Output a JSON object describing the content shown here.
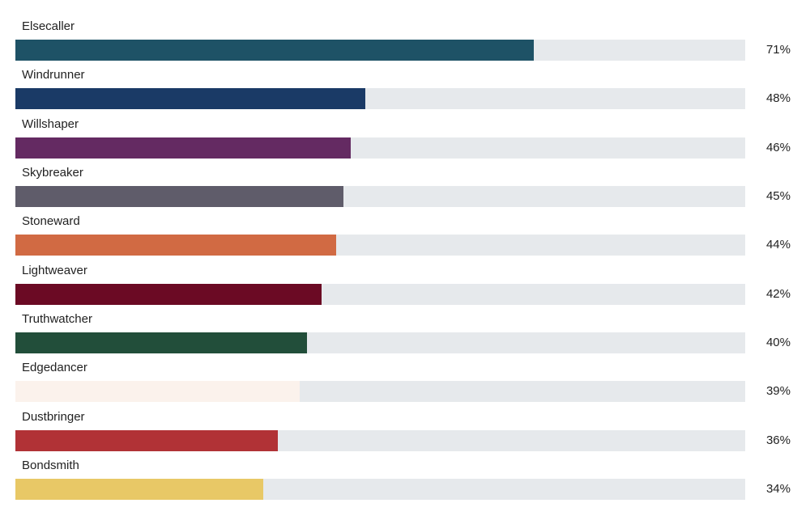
{
  "chart_data": {
    "type": "bar",
    "orientation": "horizontal",
    "title": "",
    "xlabel": "",
    "ylabel": "",
    "xlim": [
      0,
      100
    ],
    "categories": [
      "Elsecaller",
      "Windrunner",
      "Willshaper",
      "Skybreaker",
      "Stoneward",
      "Lightweaver",
      "Truthwatcher",
      "Edgedancer",
      "Dustbringer",
      "Bondsmith"
    ],
    "values": [
      71,
      48,
      46,
      45,
      44,
      42,
      40,
      39,
      36,
      34
    ],
    "value_labels": [
      "71%",
      "48%",
      "46%",
      "45%",
      "44%",
      "42%",
      "40%",
      "39%",
      "36%",
      "34%"
    ],
    "colors": [
      "#1e5266",
      "#1a3a66",
      "#642a62",
      "#5f5c6a",
      "#d16a43",
      "#6b0a24",
      "#224e3a",
      "#fbf2ec",
      "#b13236",
      "#e8c866"
    ],
    "track_color": "#e6e9ec",
    "grid": false,
    "legend": "none"
  }
}
